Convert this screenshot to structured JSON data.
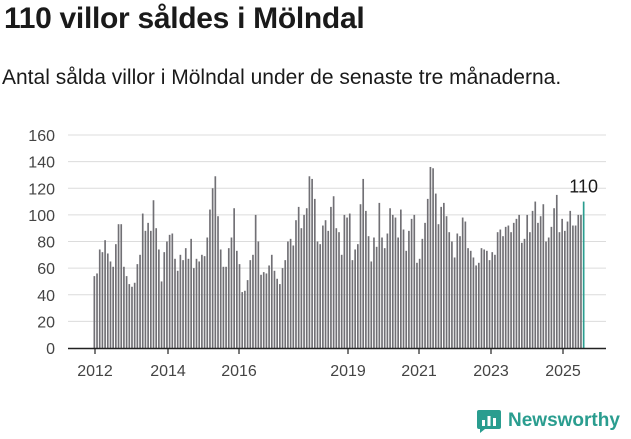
{
  "title": "110 villor såldes i Mölndal",
  "subtitle": "Antal sålda villor i Mölndal under de senaste tre månaderna.",
  "brand": {
    "name": "Newsworthy",
    "icon": "newsworthy-logo-icon"
  },
  "colors": {
    "bar": "#717075",
    "highlight": "#2a9d8f",
    "grid": "#dcdcdc",
    "axis": "#222222",
    "text": "#1a1a1a"
  },
  "chart_data": {
    "type": "bar",
    "title": "110 villor såldes i Mölndal",
    "subtitle": "Antal sålda villor i Mölndal under de senaste tre månaderna.",
    "xlabel": "",
    "ylabel": "",
    "ylim": [
      0,
      160
    ],
    "yticks": [
      0,
      20,
      40,
      60,
      80,
      100,
      120,
      140,
      160
    ],
    "xticks": [
      "2012",
      "2014",
      "2016",
      "2019",
      "2021",
      "2023",
      "2025"
    ],
    "grid": true,
    "legend": "none",
    "annotation": {
      "label": "110",
      "value": 110
    },
    "series": [
      {
        "values": [
          54,
          56,
          74,
          72,
          81,
          71,
          65,
          61,
          78,
          93,
          93,
          61,
          54,
          48,
          46,
          49,
          63,
          70,
          101,
          88,
          94,
          88,
          111,
          90,
          74,
          50,
          72,
          80,
          85,
          86,
          67,
          58,
          70,
          66,
          75,
          67,
          82,
          60,
          67,
          65,
          70,
          69,
          83,
          104,
          120,
          129,
          99,
          74,
          61,
          61,
          75,
          83,
          105,
          73,
          63,
          42,
          43,
          51,
          66,
          70,
          100,
          80,
          55,
          57,
          56,
          62,
          70,
          58,
          52,
          48,
          60,
          66,
          80,
          82,
          77,
          96,
          106,
          90,
          100,
          105,
          129,
          127,
          112,
          80,
          78,
          92,
          96,
          88,
          106,
          114,
          90,
          87,
          70,
          100,
          98,
          101,
          66,
          74,
          78,
          108,
          127,
          103,
          84,
          65,
          83,
          76,
          109,
          83,
          75,
          86,
          105,
          100,
          98,
          83,
          104,
          89,
          73,
          88,
          97,
          100,
          64,
          67,
          82,
          94,
          112,
          136,
          135,
          116,
          93,
          106,
          109,
          99,
          87,
          80,
          68,
          86,
          84,
          98,
          95,
          75,
          73,
          68,
          62,
          64,
          75,
          74,
          73,
          66,
          72,
          70,
          87,
          89,
          84,
          91,
          92,
          87,
          94,
          97,
          100,
          79,
          82,
          100,
          87,
          103,
          110,
          94,
          99,
          108,
          80,
          83,
          91,
          105,
          115,
          87,
          97,
          88,
          95,
          103,
          92,
          92,
          100,
          100,
          110
        ]
      }
    ]
  }
}
